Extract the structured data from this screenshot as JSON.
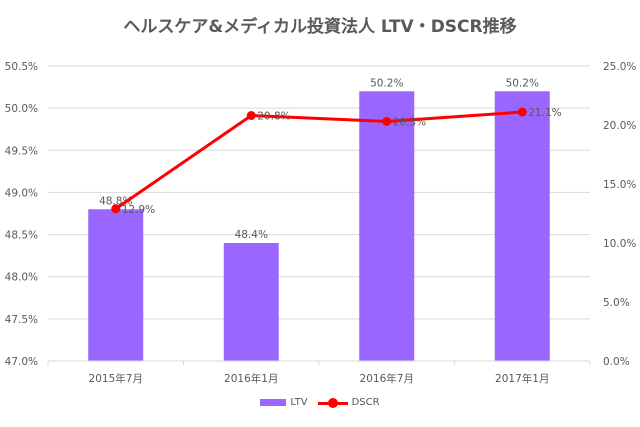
{
  "title": "ヘルスケア&メディカル投資法人 LTV・DSCR推移",
  "colors": {
    "ltv": "#9966ff",
    "dscr": "#ff0000",
    "grid": "#d9d9d9",
    "text": "#595959"
  },
  "legend": {
    "ltv": "LTV",
    "dscr": "DSCR"
  },
  "chart_data": {
    "type": "bar+line",
    "title": "ヘルスケア&メディカル投資法人 LTV・DSCR推移",
    "categories": [
      "2015年7月",
      "2016年1月",
      "2016年7月",
      "2017年1月"
    ],
    "series": [
      {
        "name": "LTV",
        "type": "bar",
        "axis": "left",
        "values": [
          48.8,
          48.4,
          50.2,
          50.2
        ],
        "labels": [
          "48.8%",
          "48.4%",
          "50.2%",
          "50.2%"
        ]
      },
      {
        "name": "DSCR",
        "type": "line",
        "axis": "right",
        "values": [
          12.9,
          20.8,
          20.3,
          21.1
        ],
        "labels": [
          "12.9%",
          "20.8%",
          "20.3%",
          "21.1%"
        ]
      }
    ],
    "left_axis": {
      "min": 47.0,
      "max": 50.5,
      "step": 0.5,
      "ticks": [
        "50.5%",
        "50.0%",
        "49.5%",
        "49.0%",
        "48.5%",
        "48.0%",
        "47.5%",
        "47.0%"
      ]
    },
    "right_axis": {
      "min": 0,
      "max": 25,
      "step": 5,
      "ticks": [
        "25.0%",
        "20.0%",
        "15.0%",
        "10.0%",
        "5.0%",
        "0.0%"
      ]
    },
    "xlabel": "",
    "ylabel": "",
    "grid": true,
    "legend_position": "bottom"
  }
}
